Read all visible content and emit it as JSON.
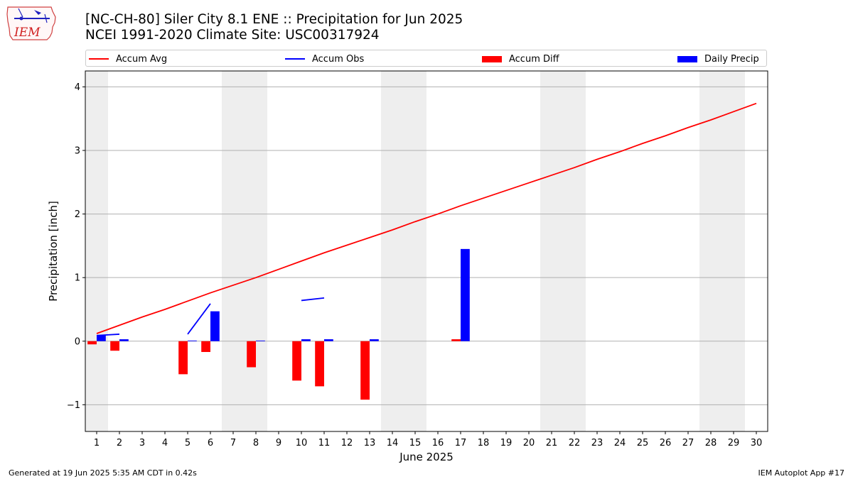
{
  "header": {
    "title_line1": "[NC-CH-80] Siler City 8.1 ENE :: Precipitation for Jun 2025",
    "title_line2": "NCEI 1991-2020 Climate Site: USC00317924"
  },
  "logo": {
    "text": "IEM",
    "icon": "iowa-map-logo-icon"
  },
  "legend": [
    {
      "label": "Accum Avg",
      "kind": "line",
      "color": "#ff0000"
    },
    {
      "label": "Accum Obs",
      "kind": "line",
      "color": "#0000ff"
    },
    {
      "label": "Accum Diff",
      "kind": "box",
      "color": "#ff0000"
    },
    {
      "label": "Daily Precip",
      "kind": "box",
      "color": "#0000ff"
    }
  ],
  "footer": {
    "left": "Generated at 19 Jun 2025 5:35 AM CDT in 0.42s",
    "right": "IEM Autoplot App #17"
  },
  "chart_data": {
    "type": "bar",
    "title": "[NC-CH-80] Siler City 8.1 ENE :: Precipitation for Jun 2025",
    "subtitle": "NCEI 1991-2020 Climate Site: USC00317924",
    "xlabel": "June 2025",
    "ylabel": "Precipitation [inch]",
    "xlim": [
      0.5,
      30.5
    ],
    "ylim": [
      -1.42,
      4.25
    ],
    "yticks": [
      -1,
      0,
      1,
      2,
      3,
      4
    ],
    "ytick_labels": [
      "−1",
      "0",
      "1",
      "2",
      "3",
      "4"
    ],
    "x": [
      1,
      2,
      3,
      4,
      5,
      6,
      7,
      8,
      9,
      10,
      11,
      12,
      13,
      14,
      15,
      16,
      17,
      18,
      19,
      20,
      21,
      22,
      23,
      24,
      25,
      26,
      27,
      28,
      29,
      30
    ],
    "grid": true,
    "legend_position": "top",
    "weekend_shading": [
      [
        0.5,
        1.5
      ],
      [
        6.5,
        8.5
      ],
      [
        13.5,
        15.5
      ],
      [
        20.5,
        22.5
      ],
      [
        27.5,
        29.5
      ]
    ],
    "shading_color": "#eeeeee",
    "series": [
      {
        "name": "Accum Avg",
        "kind": "line",
        "color": "#ff0000",
        "values": [
          0.12,
          0.25,
          0.38,
          0.5,
          0.63,
          0.76,
          0.88,
          1.0,
          1.13,
          1.26,
          1.39,
          1.51,
          1.63,
          1.75,
          1.88,
          2.0,
          2.13,
          2.25,
          2.37,
          2.49,
          2.61,
          2.73,
          2.86,
          2.98,
          3.11,
          3.23,
          3.36,
          3.48,
          3.61,
          3.74
        ]
      },
      {
        "name": "Accum Obs",
        "kind": "line",
        "color": "#0000ff",
        "segments": [
          {
            "x": [
              1,
              2
            ],
            "values": [
              0.09,
              0.11
            ]
          },
          {
            "x": [
              5,
              6
            ],
            "values": [
              0.11,
              0.59
            ]
          },
          {
            "x": [
              10,
              11
            ],
            "values": [
              0.64,
              0.68
            ]
          }
        ]
      },
      {
        "name": "Accum Diff",
        "kind": "bar",
        "color": "#ff0000",
        "x": [
          1,
          2,
          5,
          6,
          8,
          10,
          11,
          13,
          17
        ],
        "values": [
          -0.05,
          -0.15,
          -0.52,
          -0.17,
          -0.41,
          -0.62,
          -0.71,
          -0.92,
          0.03
        ]
      },
      {
        "name": "Daily Precip",
        "kind": "bar",
        "color": "#0000ff",
        "x": [
          1,
          2,
          5,
          6,
          8,
          10,
          11,
          13,
          17
        ],
        "values": [
          0.09,
          0.03,
          0.01,
          0.47,
          0.01,
          0.03,
          0.03,
          0.03,
          1.45
        ]
      }
    ]
  }
}
